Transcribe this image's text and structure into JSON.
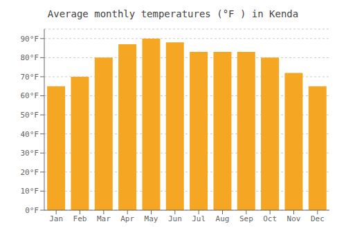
{
  "chart_data": {
    "type": "bar",
    "title": "Average monthly temperatures (°F ) in Kenda",
    "categories": [
      "Jan",
      "Feb",
      "Mar",
      "Apr",
      "May",
      "Jun",
      "Jul",
      "Aug",
      "Sep",
      "Oct",
      "Nov",
      "Dec"
    ],
    "values": [
      65,
      70,
      80,
      87,
      90,
      88,
      83,
      83,
      83,
      80,
      72,
      65
    ],
    "color": "#F5A623",
    "ylim": [
      0,
      95
    ],
    "yticks": [
      {
        "value": 0,
        "label": "0°F"
      },
      {
        "value": 10,
        "label": "10°F"
      },
      {
        "value": 20,
        "label": "20°F"
      },
      {
        "value": 30,
        "label": "30°F"
      },
      {
        "value": 40,
        "label": "40°F"
      },
      {
        "value": 50,
        "label": "50°F"
      },
      {
        "value": 60,
        "label": "60°F"
      },
      {
        "value": 70,
        "label": "70°F"
      },
      {
        "value": 80,
        "label": "80°F"
      },
      {
        "value": 90,
        "label": "90°F"
      }
    ],
    "grid": true
  }
}
